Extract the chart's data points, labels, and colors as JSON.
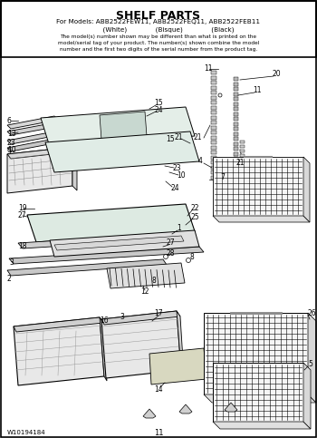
{
  "title": "SHELF PARTS",
  "subtitle_line1": "For Models: ABB2522FEW11, ABB2522FEQ11, ABB2522FEB11",
  "subtitle_line2": "          (White)              (Bisque)              (Black)",
  "disclaimer": "The model(s) number shown may be different than what is printed on the\nmodel/serial tag of your product. The number(s) shown combine the model\nnumber and the first two digits of the serial number from the product tag.",
  "footer_left": "W10194184",
  "footer_center": "11",
  "bg_color": "#ffffff",
  "border_color": "#000000",
  "text_color": "#000000",
  "fig_width": 3.5,
  "fig_height": 4.83,
  "dpi": 100
}
